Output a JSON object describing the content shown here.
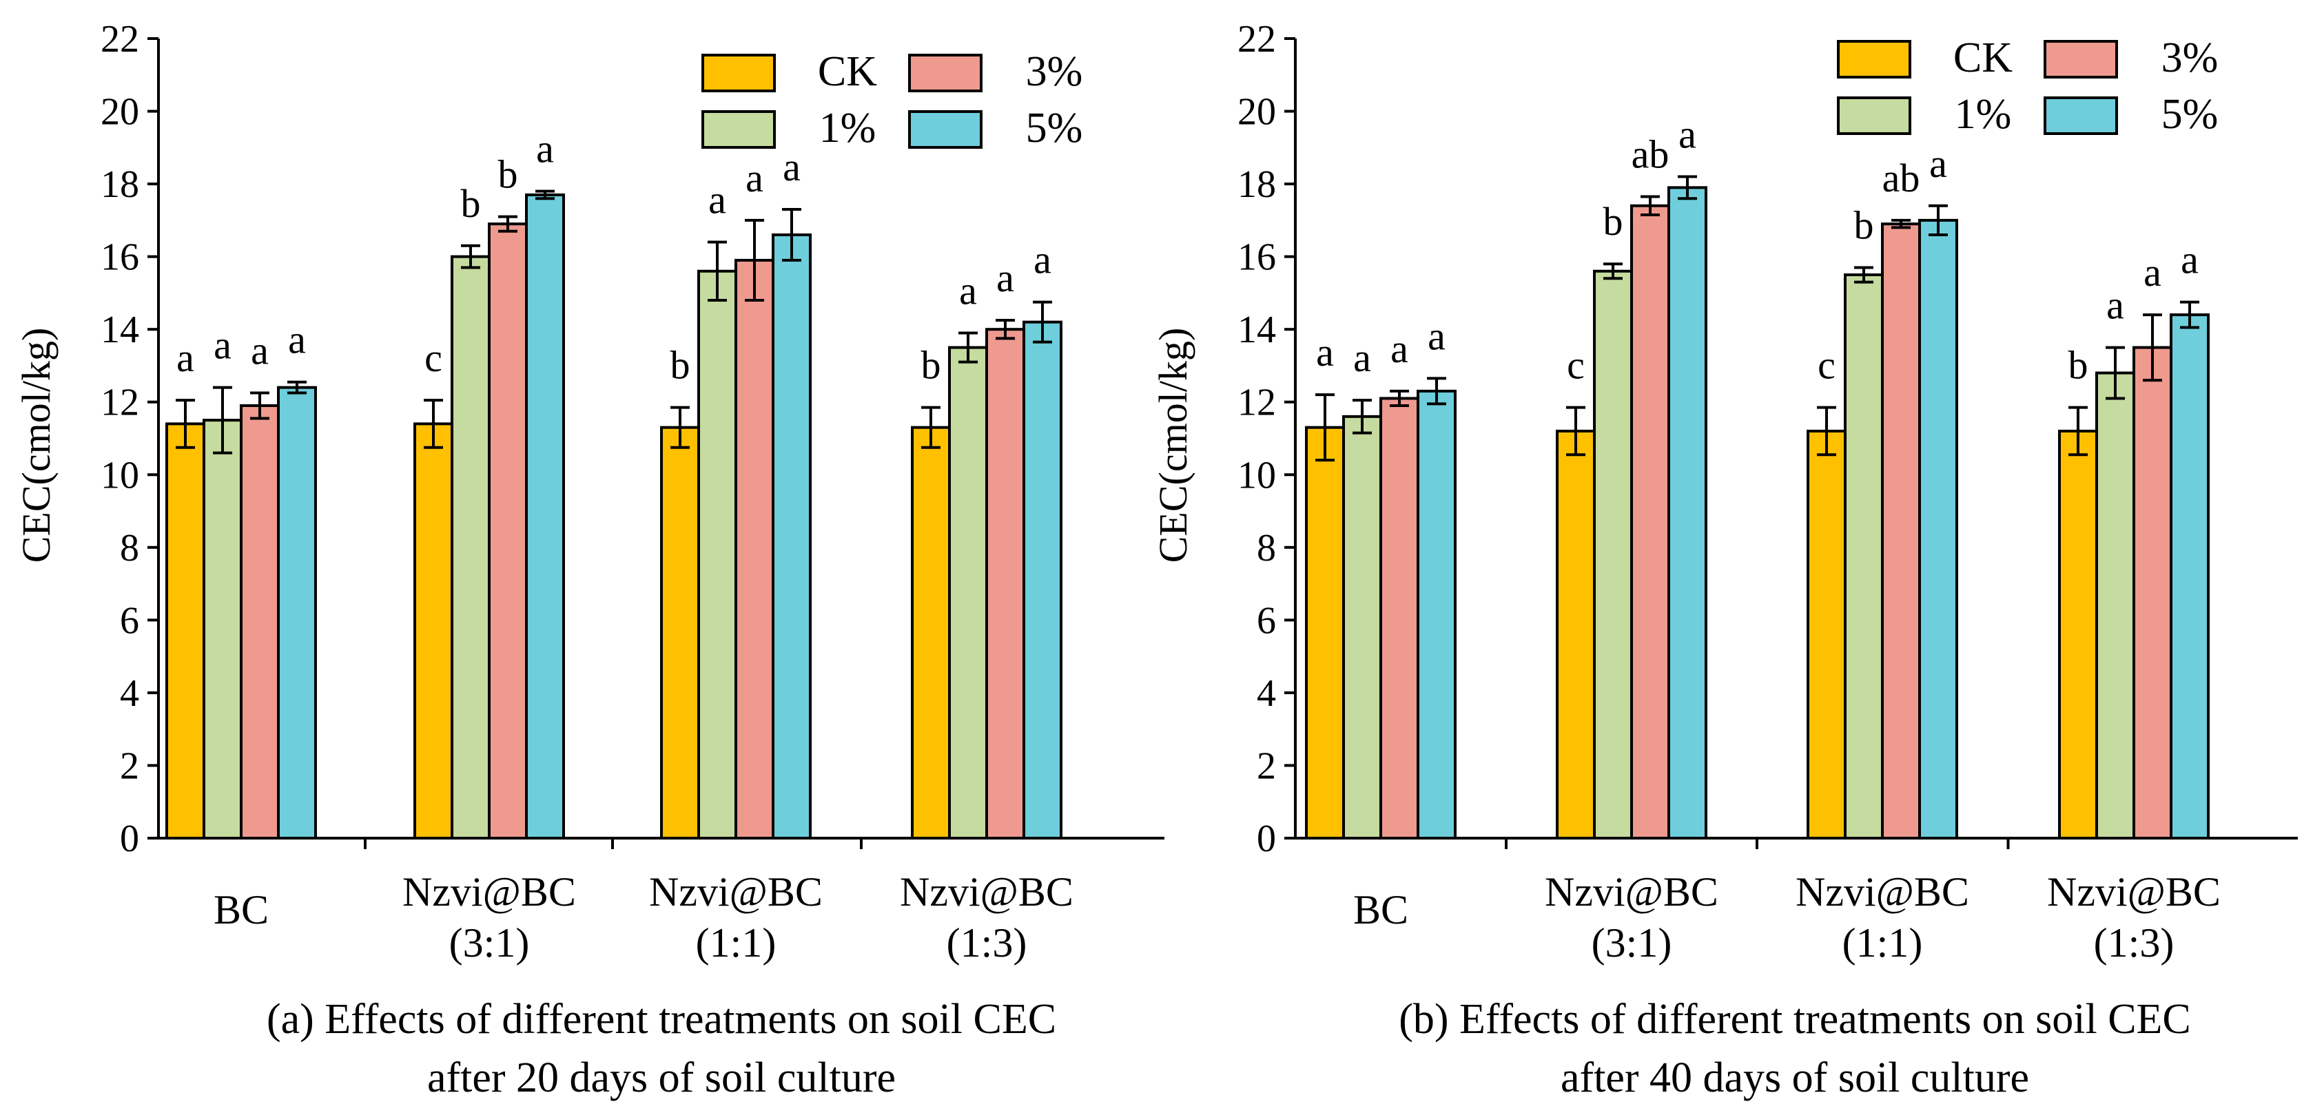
{
  "chart_data": [
    {
      "id": "a",
      "type": "bar",
      "title": "(a) Effects of different treatments on soil CEC",
      "subtitle": "after 20 days of soil culture",
      "xlabel": "",
      "ylabel": "CEC(cmol/kg)",
      "ylim": [
        0,
        22
      ],
      "yticks": [
        "0",
        "2",
        "4",
        "6",
        "8",
        "10",
        "12",
        "14",
        "16",
        "18",
        "20",
        "22"
      ],
      "grid": false,
      "legend_position": "top-right",
      "categories": [
        {
          "line1": "BC",
          "line2": ""
        },
        {
          "line1": "Nzvi@BC",
          "line2": "(3:1)"
        },
        {
          "line1": "Nzvi@BC",
          "line2": "(1:1)"
        },
        {
          "line1": "Nzvi@BC",
          "line2": "(1:3)"
        }
      ],
      "series": [
        {
          "name": "CK",
          "color": "#FFC000",
          "values": [
            11.4,
            11.4,
            11.3,
            11.3
          ],
          "errors": [
            0.65,
            0.65,
            0.55,
            0.55
          ],
          "letters": [
            "a",
            "c",
            "b",
            "b"
          ]
        },
        {
          "name": "1%",
          "color": "#C5DB9F",
          "values": [
            11.5,
            16.0,
            15.6,
            13.5
          ],
          "errors": [
            0.9,
            0.3,
            0.8,
            0.4
          ],
          "letters": [
            "a",
            "b",
            "a",
            "a"
          ]
        },
        {
          "name": "3%",
          "color": "#EE9A8F",
          "values": [
            11.9,
            16.9,
            15.9,
            14.0
          ],
          "errors": [
            0.35,
            0.2,
            1.1,
            0.25
          ],
          "letters": [
            "a",
            "b",
            "a",
            "a"
          ]
        },
        {
          "name": "5%",
          "color": "#6ECEDC",
          "values": [
            12.4,
            17.7,
            16.6,
            14.2
          ],
          "errors": [
            0.15,
            0.1,
            0.7,
            0.55
          ],
          "letters": [
            "a",
            "a",
            "a",
            "a"
          ]
        }
      ]
    },
    {
      "id": "b",
      "type": "bar",
      "title": "(b) Effects of different treatments on soil CEC",
      "subtitle": "after 40 days of soil culture",
      "xlabel": "",
      "ylabel": "CEC(cmol/kg)",
      "ylim": [
        0,
        22
      ],
      "yticks": [
        "0",
        "2",
        "4",
        "6",
        "8",
        "10",
        "12",
        "14",
        "16",
        "18",
        "20",
        "22"
      ],
      "grid": false,
      "legend_position": "top-right",
      "categories": [
        {
          "line1": "BC",
          "line2": ""
        },
        {
          "line1": "Nzvi@BC",
          "line2": "(3:1)"
        },
        {
          "line1": "Nzvi@BC",
          "line2": "(1:1)"
        },
        {
          "line1": "Nzvi@BC",
          "line2": "(1:3)"
        }
      ],
      "series": [
        {
          "name": "CK",
          "color": "#FFC000",
          "values": [
            11.3,
            11.2,
            11.2,
            11.2
          ],
          "errors": [
            0.9,
            0.65,
            0.65,
            0.65
          ],
          "letters": [
            "a",
            "c",
            "c",
            "b"
          ]
        },
        {
          "name": "1%",
          "color": "#C5DB9F",
          "values": [
            11.6,
            15.6,
            15.5,
            12.8
          ],
          "errors": [
            0.45,
            0.2,
            0.2,
            0.7
          ],
          "letters": [
            "a",
            "b",
            "b",
            "a"
          ]
        },
        {
          "name": "3%",
          "color": "#EE9A8F",
          "values": [
            12.1,
            17.4,
            16.9,
            13.5
          ],
          "errors": [
            0.2,
            0.25,
            0.1,
            0.9
          ],
          "letters": [
            "a",
            "ab",
            "ab",
            "a"
          ]
        },
        {
          "name": "5%",
          "color": "#6ECEDC",
          "values": [
            12.3,
            17.9,
            17.0,
            14.4
          ],
          "errors": [
            0.35,
            0.3,
            0.4,
            0.35
          ],
          "letters": [
            "a",
            "a",
            "a",
            "a"
          ]
        }
      ]
    }
  ]
}
